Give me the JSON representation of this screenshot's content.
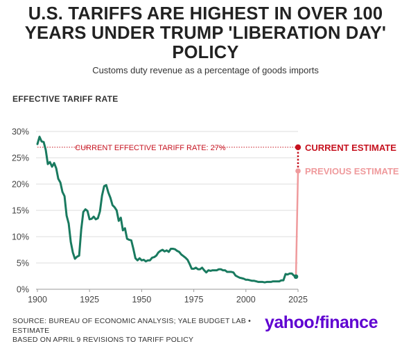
{
  "title_line1": "U.S. TARIFFS ARE HIGHEST IN OVER 100",
  "title_line2": "YEARS UNDER TRUMP 'LIBERATION DAY'",
  "title_line3": "POLICY",
  "subtitle": "Customs duty revenue as a percentage of goods imports",
  "section_label": "EFFECTIVE TARIFF RATE",
  "source_line1": "SOURCE: BUREAU OF ECONOMIC ANALYSIS; YALE BUDGET LAB • ESTIMATE",
  "source_line2": "BASED ON APRIL 9 REVISIONS TO TARIFF POLICY",
  "logo_text": "yahoo!finance",
  "colors": {
    "line": "#197a5f",
    "current": "#c6121f",
    "previous": "#ef9a9c",
    "grid": "#dcdcdc",
    "brand": "#5f01d1"
  },
  "chart_data": {
    "type": "line",
    "title": "U.S. TARIFFS ARE HIGHEST IN OVER 100 YEARS UNDER TRUMP 'LIBERATION DAY' POLICY",
    "subtitle": "Customs duty revenue as a percentage of goods imports",
    "ylabel": "EFFECTIVE TARIFF RATE",
    "xlabel": "",
    "xlim": [
      1900,
      2025
    ],
    "ylim": [
      0,
      30
    ],
    "x_ticks": [
      1900,
      1925,
      1950,
      1975,
      2000,
      2025
    ],
    "x_tick_labels": [
      "1900",
      "1925",
      "1950",
      "1975",
      "2000",
      "2025"
    ],
    "y_ticks": [
      0,
      5,
      10,
      15,
      20,
      25,
      30
    ],
    "y_tick_labels": [
      "0%",
      "5%",
      "10%",
      "15%",
      "20%",
      "25%",
      "30%"
    ],
    "grid": "horizontal",
    "series": [
      {
        "x": [
          1900,
          1901,
          1902,
          1903,
          1904,
          1905,
          1906,
          1907,
          1908,
          1909,
          1910,
          1911,
          1912,
          1913,
          1914,
          1915,
          1916,
          1917,
          1918,
          1919,
          1920,
          1921,
          1922,
          1923,
          1924,
          1925,
          1926,
          1927,
          1928,
          1929,
          1930,
          1931,
          1932,
          1933,
          1934,
          1935,
          1936,
          1937,
          1938,
          1939,
          1940,
          1941,
          1942,
          1943,
          1944,
          1945,
          1946,
          1947,
          1948,
          1949,
          1950,
          1951,
          1952,
          1953,
          1954,
          1955,
          1956,
          1957,
          1958,
          1959,
          1960,
          1961,
          1962,
          1963,
          1964,
          1965,
          1966,
          1967,
          1968,
          1969,
          1970,
          1971,
          1972,
          1973,
          1974,
          1975,
          1976,
          1977,
          1978,
          1979,
          1980,
          1981,
          1982,
          1983,
          1984,
          1985,
          1986,
          1987,
          1988,
          1989,
          1990,
          1991,
          1992,
          1993,
          1994,
          1995,
          1996,
          1997,
          1998,
          1999,
          2000,
          2001,
          2002,
          2003,
          2004,
          2005,
          2006,
          2007,
          2008,
          2009,
          2010,
          2011,
          2012,
          2013,
          2014,
          2015,
          2016,
          2017,
          2018,
          2019,
          2020,
          2021,
          2022,
          2023,
          2024
        ],
        "values": [
          27.6,
          29.0,
          28.1,
          28.0,
          26.5,
          23.8,
          24.2,
          23.3,
          24.0,
          23.0,
          21.0,
          20.3,
          18.5,
          17.7,
          14.0,
          12.5,
          9.0,
          7.0,
          5.8,
          6.2,
          6.4,
          11.4,
          14.7,
          15.2,
          14.9,
          13.3,
          13.4,
          13.8,
          13.3,
          13.5,
          14.8,
          17.8,
          19.6,
          19.8,
          18.4,
          17.4,
          16.0,
          15.6,
          15.0,
          13.0,
          13.6,
          11.2,
          11.6,
          9.6,
          9.4,
          9.3,
          7.7,
          5.9,
          5.5,
          5.9,
          5.5,
          5.6,
          5.3,
          5.5,
          5.5,
          6.0,
          6.1,
          6.4,
          7.0,
          7.3,
          7.5,
          7.2,
          7.4,
          7.1,
          7.7,
          7.7,
          7.6,
          7.3,
          7.1,
          6.6,
          6.3,
          6.0,
          5.6,
          4.8,
          3.9,
          3.9,
          4.1,
          3.8,
          3.8,
          4.1,
          3.6,
          3.2,
          3.6,
          3.5,
          3.6,
          3.6,
          3.6,
          3.8,
          3.8,
          3.6,
          3.6,
          3.3,
          3.3,
          3.3,
          3.2,
          2.6,
          2.4,
          2.2,
          2.1,
          2.0,
          1.8,
          1.8,
          1.7,
          1.6,
          1.6,
          1.5,
          1.4,
          1.4,
          1.4,
          1.3,
          1.4,
          1.4,
          1.4,
          1.5,
          1.5,
          1.5,
          1.5,
          1.7,
          1.7,
          2.9,
          2.8,
          3.0,
          3.0,
          2.6,
          2.4
        ]
      }
    ],
    "reference_line": {
      "value": 27,
      "label": "CURRENT EFFECTIVE TARIFF RATE: 27%"
    },
    "annotations": [
      {
        "label": "CURRENT ESTIMATE",
        "x": 2025,
        "y": 27
      },
      {
        "label": "PREVIOUS ESTIMATE",
        "x": 2025,
        "y": 22.5
      }
    ]
  }
}
